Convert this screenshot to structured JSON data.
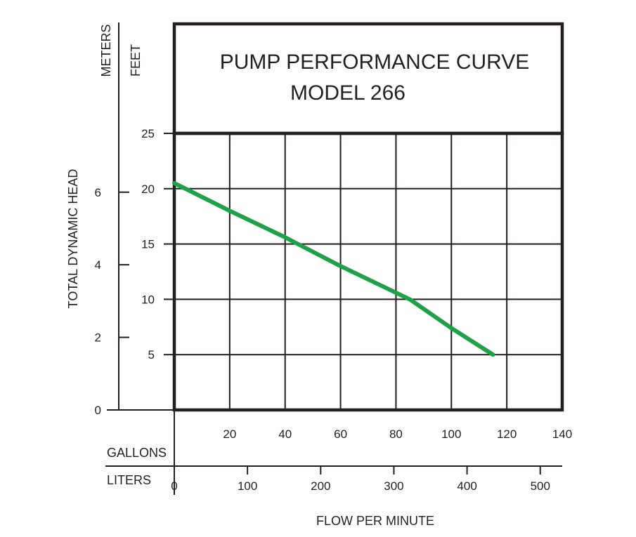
{
  "chart_data": {
    "type": "line",
    "title": "PUMP PERFORMANCE CURVE",
    "subtitle": "MODEL 266",
    "ylabel": "TOTAL DYNAMIC HEAD",
    "xlabel": "FLOW PER MINUTE",
    "y_feet": {
      "label": "FEET",
      "ticks": [
        "5",
        "10",
        "15",
        "20",
        "25"
      ],
      "ylim": [
        0,
        25
      ]
    },
    "y_meters": {
      "label": "METERS",
      "ticks": [
        "0",
        "2",
        "4",
        "6"
      ],
      "ylim": [
        0,
        7.62
      ]
    },
    "x_gallons": {
      "label": "GALLONS",
      "ticks": [
        "20",
        "40",
        "60",
        "80",
        "100",
        "120",
        "140"
      ],
      "xlim": [
        0,
        140
      ]
    },
    "x_liters": {
      "label": "LITERS",
      "ticks": [
        "0",
        "100",
        "200",
        "300",
        "400",
        "500"
      ],
      "xlim": [
        0,
        530
      ]
    },
    "grid": true,
    "series": [
      {
        "color": "#1fa149",
        "x": [
          0,
          20,
          40,
          60,
          80,
          85,
          100,
          115
        ],
        "y": [
          20.5,
          18.0,
          15.6,
          13.0,
          10.6,
          10.0,
          7.4,
          5.0
        ]
      }
    ]
  }
}
